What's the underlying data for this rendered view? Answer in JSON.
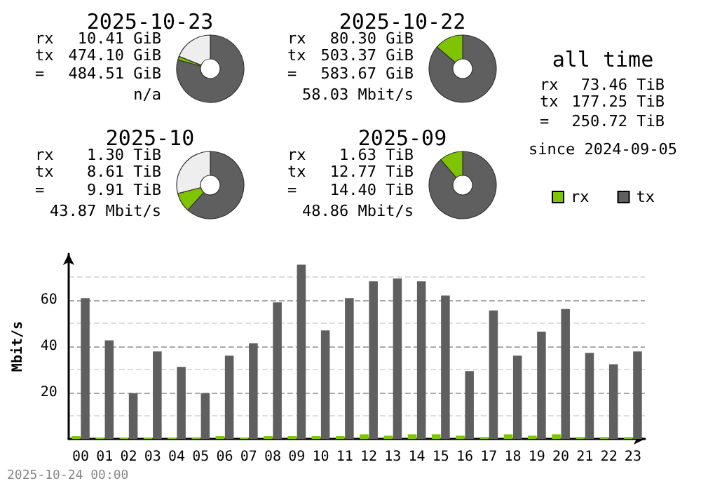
{
  "chart_data": [
    {
      "type": "donut",
      "title": "2025-10-23",
      "categories": [
        null,
        null,
        null
      ],
      "values": [
        79.3,
        1.7,
        19.0
      ],
      "colors": [
        "#5f5f5f",
        "#7fc400",
        "#eeeeee"
      ],
      "annotations": [
        "rx",
        "10.41 GiB",
        "tx",
        "474.10 GiB",
        "=",
        "484.51 GiB",
        "n/a"
      ]
    },
    {
      "type": "donut",
      "title": "2025-10-22",
      "categories": [
        null,
        null
      ],
      "values": [
        86.2,
        13.8
      ],
      "colors": [
        "#5f5f5f",
        "#7fc400"
      ],
      "annotations": [
        "rx",
        "80.30 GiB",
        "tx",
        "503.37 GiB",
        "=",
        "583.67 GiB",
        "58.03 Mbit/s"
      ]
    },
    {
      "type": "other",
      "title": "all time",
      "annotations": [
        "rx",
        "73.46 TiB",
        "tx",
        "177.25 TiB",
        "=",
        "250.72 TiB",
        "since 2024-09-05"
      ]
    },
    {
      "type": "donut",
      "title": "2025-10",
      "categories": [
        null,
        null,
        null
      ],
      "values": [
        61.7,
        9.3,
        29.0
      ],
      "colors": [
        "#5f5f5f",
        "#7fc400",
        "#eeeeee"
      ],
      "annotations": [
        "rx",
        "1.30 TiB",
        "tx",
        "8.61 TiB",
        "=",
        "9.91 TiB",
        "43.87 Mbit/s"
      ]
    },
    {
      "type": "donut",
      "title": "2025-09",
      "categories": [
        null,
        null
      ],
      "values": [
        88.7,
        11.3
      ],
      "colors": [
        "#5f5f5f",
        "#7fc400"
      ],
      "annotations": [
        "rx",
        "1.63 TiB",
        "tx",
        "12.77 TiB",
        "=",
        "14.40 TiB",
        "48.86 Mbit/s"
      ]
    },
    {
      "type": "bar",
      "ylabel": "Mbit/s",
      "categories": [
        "00",
        "01",
        "02",
        "03",
        "04",
        "05",
        "06",
        "07",
        "08",
        "09",
        "10",
        "11",
        "12",
        "13",
        "14",
        "15",
        "16",
        "17",
        "18",
        "19",
        "20",
        "21",
        "22",
        "23"
      ],
      "series": [
        {
          "name": "rx",
          "color": "#7fc400",
          "values": [
            1.2,
            0.6,
            0.6,
            0.6,
            0.6,
            0.3,
            1.2,
            0.6,
            1.2,
            1.2,
            1.2,
            1.2,
            2.0,
            1.4,
            2.0,
            2.0,
            1.4,
            0.8,
            2.0,
            1.4,
            2.0,
            0.8,
            0.8,
            0.8
          ]
        },
        {
          "name": "tx",
          "color": "#5f5f5f",
          "values": [
            60.8,
            42.6,
            19.8,
            37.8,
            31.1,
            19.8,
            36.0,
            41.4,
            59.0,
            75.3,
            46.9,
            60.8,
            68.1,
            69.3,
            68.1,
            62.0,
            29.3,
            55.5,
            36.0,
            46.4,
            56.1,
            37.2,
            32.3,
            37.8
          ]
        }
      ],
      "ylim": [
        0,
        80
      ],
      "yticks": [
        {
          "value": 0,
          "label": null
        },
        {
          "value": 10,
          "label": null
        },
        20,
        {
          "value": 30,
          "label": null
        },
        40,
        {
          "value": 50,
          "label": null
        },
        60,
        {
          "value": 70,
          "label": null
        }
      ],
      "grid": "y",
      "legend": "top right",
      "line_style": "dashed",
      "annotations": [
        "2025-10-24 00:00"
      ]
    }
  ]
}
